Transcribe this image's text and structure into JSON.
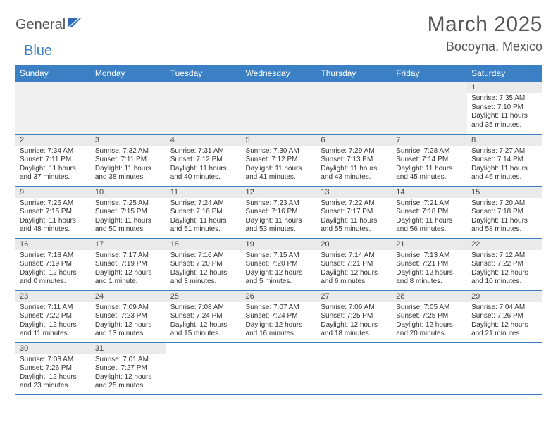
{
  "logo": {
    "part1": "General",
    "part2": "Blue"
  },
  "title": "March 2025",
  "location": "Bocoyna, Mexico",
  "weekdays": [
    "Sunday",
    "Monday",
    "Tuesday",
    "Wednesday",
    "Thursday",
    "Friday",
    "Saturday"
  ],
  "colors": {
    "header_bg": "#3b7fc4",
    "daynum_bg": "#eaeaea",
    "border": "#3b7fc4"
  },
  "days": [
    {
      "num": "1",
      "sunrise": "Sunrise: 7:35 AM",
      "sunset": "Sunset: 7:10 PM",
      "daylight": "Daylight: 11 hours and 35 minutes."
    },
    {
      "num": "2",
      "sunrise": "Sunrise: 7:34 AM",
      "sunset": "Sunset: 7:11 PM",
      "daylight": "Daylight: 11 hours and 37 minutes."
    },
    {
      "num": "3",
      "sunrise": "Sunrise: 7:32 AM",
      "sunset": "Sunset: 7:11 PM",
      "daylight": "Daylight: 11 hours and 38 minutes."
    },
    {
      "num": "4",
      "sunrise": "Sunrise: 7:31 AM",
      "sunset": "Sunset: 7:12 PM",
      "daylight": "Daylight: 11 hours and 40 minutes."
    },
    {
      "num": "5",
      "sunrise": "Sunrise: 7:30 AM",
      "sunset": "Sunset: 7:12 PM",
      "daylight": "Daylight: 11 hours and 41 minutes."
    },
    {
      "num": "6",
      "sunrise": "Sunrise: 7:29 AM",
      "sunset": "Sunset: 7:13 PM",
      "daylight": "Daylight: 11 hours and 43 minutes."
    },
    {
      "num": "7",
      "sunrise": "Sunrise: 7:28 AM",
      "sunset": "Sunset: 7:14 PM",
      "daylight": "Daylight: 11 hours and 45 minutes."
    },
    {
      "num": "8",
      "sunrise": "Sunrise: 7:27 AM",
      "sunset": "Sunset: 7:14 PM",
      "daylight": "Daylight: 11 hours and 46 minutes."
    },
    {
      "num": "9",
      "sunrise": "Sunrise: 7:26 AM",
      "sunset": "Sunset: 7:15 PM",
      "daylight": "Daylight: 11 hours and 48 minutes."
    },
    {
      "num": "10",
      "sunrise": "Sunrise: 7:25 AM",
      "sunset": "Sunset: 7:15 PM",
      "daylight": "Daylight: 11 hours and 50 minutes."
    },
    {
      "num": "11",
      "sunrise": "Sunrise: 7:24 AM",
      "sunset": "Sunset: 7:16 PM",
      "daylight": "Daylight: 11 hours and 51 minutes."
    },
    {
      "num": "12",
      "sunrise": "Sunrise: 7:23 AM",
      "sunset": "Sunset: 7:16 PM",
      "daylight": "Daylight: 11 hours and 53 minutes."
    },
    {
      "num": "13",
      "sunrise": "Sunrise: 7:22 AM",
      "sunset": "Sunset: 7:17 PM",
      "daylight": "Daylight: 11 hours and 55 minutes."
    },
    {
      "num": "14",
      "sunrise": "Sunrise: 7:21 AM",
      "sunset": "Sunset: 7:18 PM",
      "daylight": "Daylight: 11 hours and 56 minutes."
    },
    {
      "num": "15",
      "sunrise": "Sunrise: 7:20 AM",
      "sunset": "Sunset: 7:18 PM",
      "daylight": "Daylight: 11 hours and 58 minutes."
    },
    {
      "num": "16",
      "sunrise": "Sunrise: 7:18 AM",
      "sunset": "Sunset: 7:19 PM",
      "daylight": "Daylight: 12 hours and 0 minutes."
    },
    {
      "num": "17",
      "sunrise": "Sunrise: 7:17 AM",
      "sunset": "Sunset: 7:19 PM",
      "daylight": "Daylight: 12 hours and 1 minute."
    },
    {
      "num": "18",
      "sunrise": "Sunrise: 7:16 AM",
      "sunset": "Sunset: 7:20 PM",
      "daylight": "Daylight: 12 hours and 3 minutes."
    },
    {
      "num": "19",
      "sunrise": "Sunrise: 7:15 AM",
      "sunset": "Sunset: 7:20 PM",
      "daylight": "Daylight: 12 hours and 5 minutes."
    },
    {
      "num": "20",
      "sunrise": "Sunrise: 7:14 AM",
      "sunset": "Sunset: 7:21 PM",
      "daylight": "Daylight: 12 hours and 6 minutes."
    },
    {
      "num": "21",
      "sunrise": "Sunrise: 7:13 AM",
      "sunset": "Sunset: 7:21 PM",
      "daylight": "Daylight: 12 hours and 8 minutes."
    },
    {
      "num": "22",
      "sunrise": "Sunrise: 7:12 AM",
      "sunset": "Sunset: 7:22 PM",
      "daylight": "Daylight: 12 hours and 10 minutes."
    },
    {
      "num": "23",
      "sunrise": "Sunrise: 7:11 AM",
      "sunset": "Sunset: 7:22 PM",
      "daylight": "Daylight: 12 hours and 11 minutes."
    },
    {
      "num": "24",
      "sunrise": "Sunrise: 7:09 AM",
      "sunset": "Sunset: 7:23 PM",
      "daylight": "Daylight: 12 hours and 13 minutes."
    },
    {
      "num": "25",
      "sunrise": "Sunrise: 7:08 AM",
      "sunset": "Sunset: 7:24 PM",
      "daylight": "Daylight: 12 hours and 15 minutes."
    },
    {
      "num": "26",
      "sunrise": "Sunrise: 7:07 AM",
      "sunset": "Sunset: 7:24 PM",
      "daylight": "Daylight: 12 hours and 16 minutes."
    },
    {
      "num": "27",
      "sunrise": "Sunrise: 7:06 AM",
      "sunset": "Sunset: 7:25 PM",
      "daylight": "Daylight: 12 hours and 18 minutes."
    },
    {
      "num": "28",
      "sunrise": "Sunrise: 7:05 AM",
      "sunset": "Sunset: 7:25 PM",
      "daylight": "Daylight: 12 hours and 20 minutes."
    },
    {
      "num": "29",
      "sunrise": "Sunrise: 7:04 AM",
      "sunset": "Sunset: 7:26 PM",
      "daylight": "Daylight: 12 hours and 21 minutes."
    },
    {
      "num": "30",
      "sunrise": "Sunrise: 7:03 AM",
      "sunset": "Sunset: 7:26 PM",
      "daylight": "Daylight: 12 hours and 23 minutes."
    },
    {
      "num": "31",
      "sunrise": "Sunrise: 7:01 AM",
      "sunset": "Sunset: 7:27 PM",
      "daylight": "Daylight: 12 hours and 25 minutes."
    }
  ],
  "grid": [
    [
      null,
      null,
      null,
      null,
      null,
      null,
      0
    ],
    [
      1,
      2,
      3,
      4,
      5,
      6,
      7
    ],
    [
      8,
      9,
      10,
      11,
      12,
      13,
      14
    ],
    [
      15,
      16,
      17,
      18,
      19,
      20,
      21
    ],
    [
      22,
      23,
      24,
      25,
      26,
      27,
      28
    ],
    [
      29,
      30,
      null,
      null,
      null,
      null,
      null
    ]
  ]
}
